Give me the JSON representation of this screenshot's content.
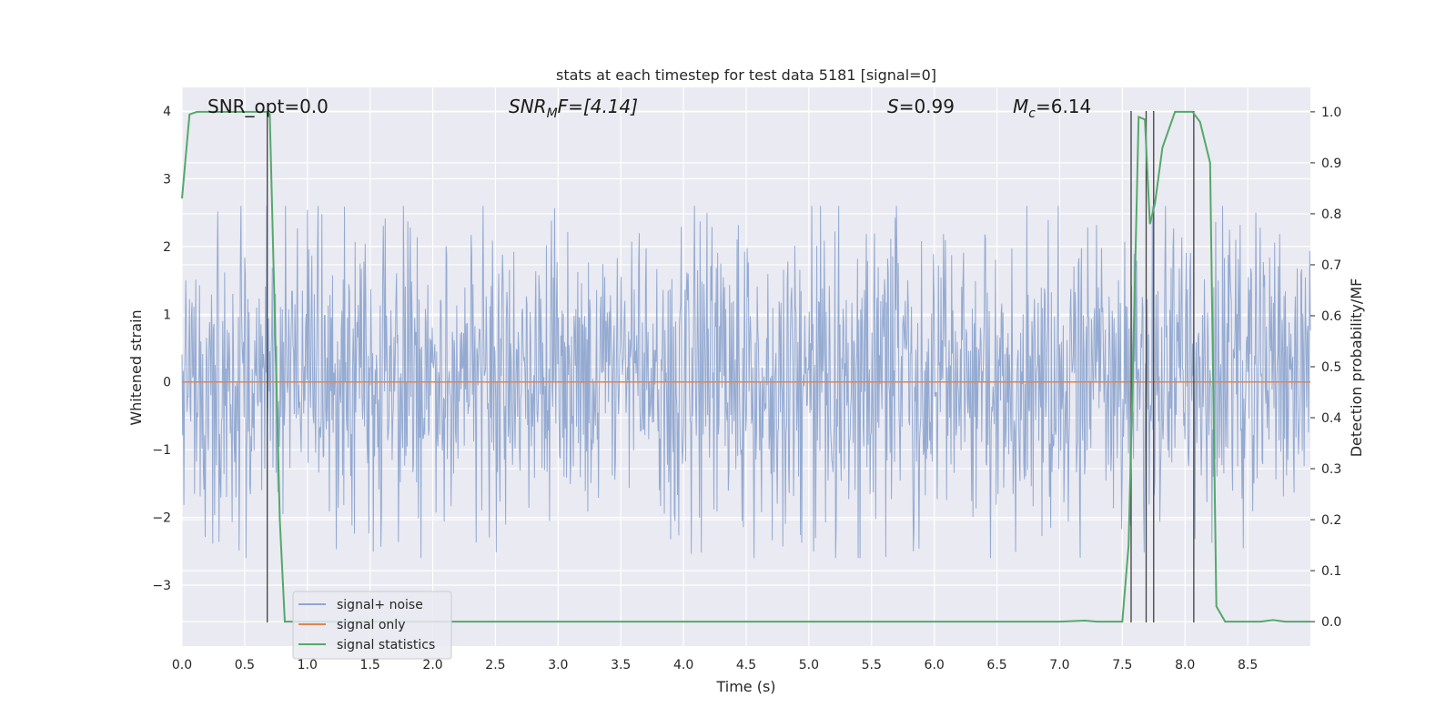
{
  "chart_data": {
    "type": "line",
    "title": "stats at each timestep for test data 5181 [signal=0]",
    "xlabel": "Time (s)",
    "ylabel": "Whitened strain",
    "y2label": "Detection probability/MF",
    "xlim": [
      0.0,
      9.0
    ],
    "ylim": [
      -3.9,
      4.35
    ],
    "y2lim": [
      -0.048,
      1.048
    ],
    "x_ticks": [
      "0.0",
      "0.5",
      "1.0",
      "1.5",
      "2.0",
      "2.5",
      "3.0",
      "3.5",
      "4.0",
      "4.5",
      "5.0",
      "5.5",
      "6.0",
      "6.5",
      "7.0",
      "7.5",
      "8.0",
      "8.5"
    ],
    "y_ticks": [
      "4",
      "3",
      "2",
      "1",
      "0",
      "−1",
      "−2",
      "−3"
    ],
    "y2_ticks": [
      "1.0",
      "0.9",
      "0.8",
      "0.7",
      "0.6",
      "0.5",
      "0.4",
      "0.3",
      "0.2",
      "0.1",
      "0.0"
    ],
    "grid": true,
    "legend_position": "lower-left",
    "annotations": {
      "snr_opt": "SNR_opt=0.0",
      "snr_mf": "SNR",
      "snr_mf_sub": "M",
      "snr_mf_rest": "F=[4.14]",
      "s_text": "S",
      "s_rest": "=0.99",
      "mc_text": "M",
      "mc_sub": "c",
      "mc_rest": "=6.14"
    },
    "series": [
      {
        "name": "signal+ noise",
        "color": "#8fa6cf",
        "note_sampling": "dense noise",
        "amplitude_envelope": [
          2.6,
          4.0
        ],
        "noise_seed": 5181,
        "n_samples": 1800
      },
      {
        "name": "signal only",
        "color": "#dd8452",
        "x": [
          0.0,
          9.0
        ],
        "y": [
          0.0,
          0.0
        ]
      },
      {
        "name": "signal statistics",
        "color": "#55a868",
        "axis": "right",
        "x": [
          0.0,
          0.06,
          0.12,
          0.2,
          0.3,
          0.4,
          0.5,
          0.6,
          0.68,
          0.7,
          0.72,
          0.78,
          0.82,
          1.0,
          2.0,
          3.0,
          4.0,
          5.0,
          6.0,
          7.0,
          7.2,
          7.3,
          7.45,
          7.5,
          7.55,
          7.58,
          7.63,
          7.68,
          7.72,
          7.76,
          7.82,
          7.92,
          8.0,
          8.06,
          8.12,
          8.2,
          8.25,
          8.32,
          8.5,
          8.6,
          8.7,
          8.8,
          9.0
        ],
        "y": [
          0.83,
          0.995,
          1.0,
          1.0,
          1.0,
          1.0,
          1.0,
          1.0,
          1.0,
          0.995,
          0.8,
          0.2,
          0.0,
          0.0,
          0.0,
          0.0,
          0.0,
          0.0,
          0.0,
          0.0,
          0.002,
          0.0,
          0.0,
          0.0,
          0.15,
          0.45,
          0.99,
          0.985,
          0.78,
          0.82,
          0.93,
          1.0,
          1.0,
          1.0,
          0.98,
          0.9,
          0.03,
          0.0,
          0.0,
          0.0,
          0.003,
          0.0,
          0.0
        ]
      }
    ],
    "vertical_lines": {
      "color": "#404040",
      "x": [
        0.68,
        7.57,
        7.69,
        7.75,
        8.07
      ],
      "y_bottom": -3.55,
      "y_top": 4.0
    }
  }
}
